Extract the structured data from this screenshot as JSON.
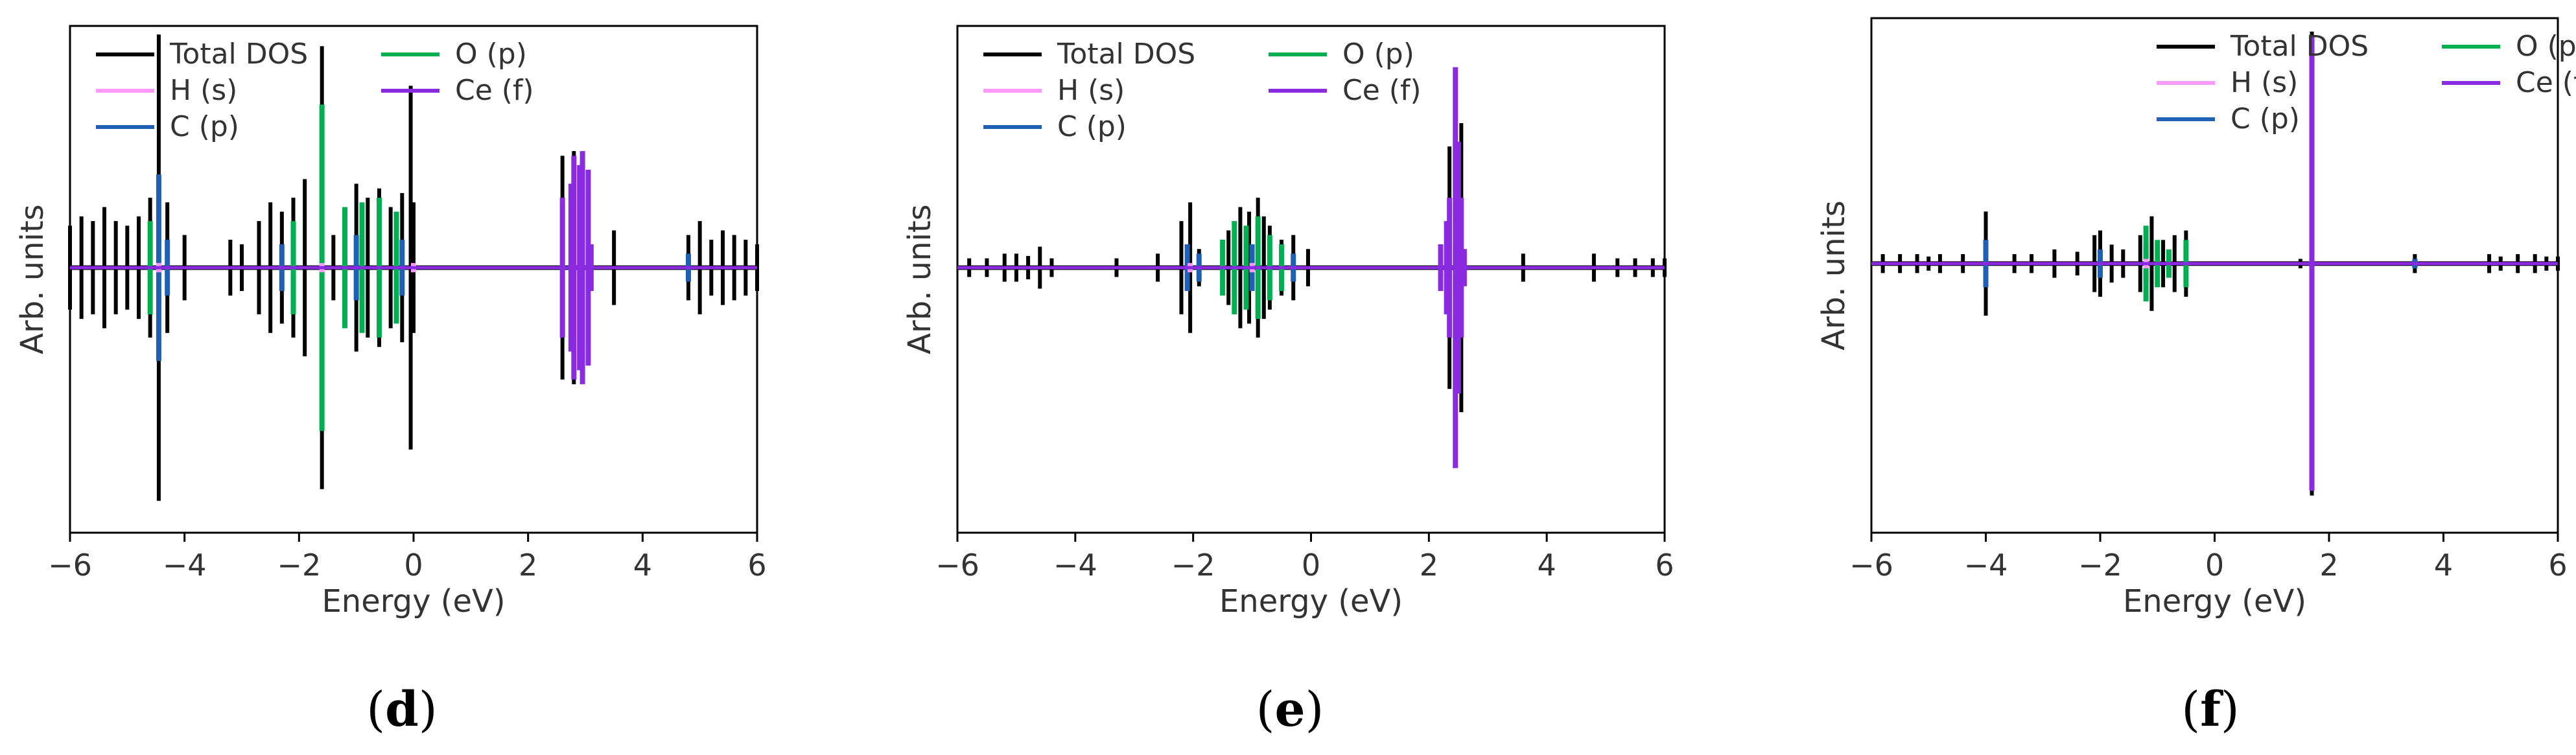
{
  "chart_data": [
    {
      "type": "line",
      "caption": "d",
      "xlabel": "Energy (eV)",
      "ylabel": "Arb. units",
      "xlim": [
        -6,
        6
      ],
      "xticks": [
        "−6",
        "−4",
        "−2",
        "0",
        "2",
        "4",
        "6"
      ],
      "legend_placement": "top-left",
      "series": [
        {
          "name": "Total DOS",
          "color": "#000000",
          "x": [
            -6.0,
            -5.8,
            -5.6,
            -5.4,
            -5.2,
            -5.0,
            -4.8,
            -4.6,
            -4.45,
            -4.3,
            -4.0,
            -3.2,
            -3.0,
            -2.7,
            -2.5,
            -2.3,
            -2.1,
            -1.9,
            -1.6,
            -1.4,
            -1.2,
            -1.0,
            -0.8,
            -0.6,
            -0.4,
            -0.2,
            -0.05,
            0.0,
            2.6,
            2.8,
            2.95,
            3.1,
            3.5,
            4.8,
            5.0,
            5.2,
            5.4,
            5.6,
            5.8,
            6.0
          ],
          "y": [
            0.18,
            0.22,
            0.2,
            0.26,
            0.2,
            0.18,
            0.22,
            0.3,
            1.0,
            0.28,
            0.14,
            0.12,
            0.1,
            0.2,
            0.28,
            0.24,
            0.3,
            0.38,
            0.95,
            0.14,
            0.26,
            0.36,
            0.3,
            0.34,
            0.26,
            0.32,
            0.78,
            0.28,
            0.48,
            0.5,
            0.46,
            0.06,
            0.16,
            0.14,
            0.2,
            0.12,
            0.16,
            0.14,
            0.12,
            0.1
          ]
        },
        {
          "name": "H (s)",
          "color": "#ff99ff",
          "x": [
            -4.45,
            -1.6,
            0.0
          ],
          "y": [
            0.02,
            0.02,
            0.02
          ]
        },
        {
          "name": "C (p)",
          "color": "#1f5fb4",
          "x": [
            -4.45,
            -4.3,
            -2.3,
            -1.0,
            -0.2,
            4.8
          ],
          "y": [
            0.4,
            0.12,
            0.1,
            0.14,
            0.12,
            0.06
          ]
        },
        {
          "name": "O (p)",
          "color": "#00b050",
          "x": [
            -4.6,
            -2.1,
            -1.6,
            -1.2,
            -0.9,
            -0.6,
            -0.3
          ],
          "y": [
            0.2,
            0.2,
            0.7,
            0.26,
            0.28,
            0.3,
            0.24
          ]
        },
        {
          "name": "Ce (f)",
          "color": "#8a2be2",
          "x": [
            2.6,
            2.75,
            2.8,
            2.9,
            2.95,
            3.05,
            3.1
          ],
          "y": [
            0.3,
            0.36,
            0.48,
            0.44,
            0.5,
            0.42,
            0.1
          ]
        }
      ]
    },
    {
      "type": "line",
      "caption": "e",
      "xlabel": "Energy (eV)",
      "ylabel": "Arb. units",
      "xlim": [
        -6,
        6
      ],
      "xticks": [
        "−6",
        "−4",
        "−2",
        "0",
        "2",
        "4",
        "6"
      ],
      "legend_placement": "top-left",
      "series": [
        {
          "name": "Total DOS",
          "color": "#000000",
          "x": [
            -5.8,
            -5.5,
            -5.2,
            -5.0,
            -4.8,
            -4.6,
            -4.4,
            -3.3,
            -2.6,
            -2.2,
            -2.05,
            -1.9,
            -1.4,
            -1.2,
            -1.05,
            -0.9,
            -0.8,
            -0.7,
            -0.5,
            -0.3,
            -0.05,
            2.2,
            2.35,
            2.45,
            2.55,
            3.6,
            4.8,
            5.2,
            5.5,
            5.8,
            6.0
          ],
          "y": [
            0.04,
            0.04,
            0.06,
            0.06,
            0.05,
            0.09,
            0.04,
            0.04,
            0.06,
            0.2,
            0.28,
            0.08,
            0.16,
            0.26,
            0.24,
            0.3,
            0.22,
            0.18,
            0.12,
            0.14,
            0.08,
            0.08,
            0.52,
            0.64,
            0.62,
            0.06,
            0.06,
            0.04,
            0.04,
            0.04,
            0.04
          ]
        },
        {
          "name": "H (s)",
          "color": "#ff99ff",
          "x": [
            -2.05,
            -1.0
          ],
          "y": [
            0.02,
            0.02
          ]
        },
        {
          "name": "C (p)",
          "color": "#1f5fb4",
          "x": [
            -2.1,
            -1.9,
            -1.0,
            -0.3
          ],
          "y": [
            0.1,
            0.06,
            0.1,
            0.06
          ]
        },
        {
          "name": "O (p)",
          "color": "#00b050",
          "x": [
            -1.5,
            -1.3,
            -1.1,
            -0.9,
            -0.7,
            -0.5
          ],
          "y": [
            0.12,
            0.2,
            0.18,
            0.22,
            0.14,
            0.1
          ]
        },
        {
          "name": "Ce (f)",
          "color": "#8a2be2",
          "x": [
            2.2,
            2.3,
            2.35,
            2.45,
            2.5,
            2.55,
            2.6
          ],
          "y": [
            0.1,
            0.2,
            0.3,
            0.86,
            0.54,
            0.3,
            0.08
          ]
        }
      ]
    },
    {
      "type": "line",
      "caption": "f",
      "xlabel": "Energy (eV)",
      "ylabel": "Arb. units",
      "xlim": [
        -6,
        6
      ],
      "xticks": [
        "−6",
        "−4",
        "−2",
        "0",
        "2",
        "4",
        "6"
      ],
      "legend_placement": "top-right",
      "series": [
        {
          "name": "Total DOS",
          "color": "#000000",
          "x": [
            -5.8,
            -5.5,
            -5.2,
            -5.0,
            -4.8,
            -4.4,
            -4.0,
            -3.5,
            -3.2,
            -2.8,
            -2.4,
            -2.1,
            -2.0,
            -1.8,
            -1.6,
            -1.3,
            -1.1,
            -0.9,
            -0.7,
            -0.5,
            1.5,
            1.7,
            3.5,
            4.8,
            5.0,
            5.3,
            5.6,
            5.8,
            6.0
          ],
          "y": [
            0.04,
            0.04,
            0.04,
            0.03,
            0.04,
            0.04,
            0.22,
            0.04,
            0.04,
            0.06,
            0.05,
            0.12,
            0.14,
            0.08,
            0.06,
            0.12,
            0.2,
            0.1,
            0.12,
            0.14,
            0.02,
            0.98,
            0.04,
            0.04,
            0.03,
            0.04,
            0.04,
            0.03,
            0.03
          ]
        },
        {
          "name": "H (s)",
          "color": "#ff99ff",
          "x": [
            -1.2
          ],
          "y": [
            0.02
          ]
        },
        {
          "name": "C (p)",
          "color": "#1f5fb4",
          "x": [
            -4.0,
            -2.0,
            -1.2,
            3.5
          ],
          "y": [
            0.1,
            0.06,
            0.08,
            0.02
          ]
        },
        {
          "name": "O (p)",
          "color": "#00b050",
          "x": [
            -1.2,
            -1.0,
            -0.8,
            -0.5
          ],
          "y": [
            0.16,
            0.1,
            0.06,
            0.1
          ]
        },
        {
          "name": "Ce (f)",
          "color": "#8a2be2",
          "x": [
            1.7
          ],
          "y": [
            0.96
          ]
        }
      ]
    }
  ]
}
